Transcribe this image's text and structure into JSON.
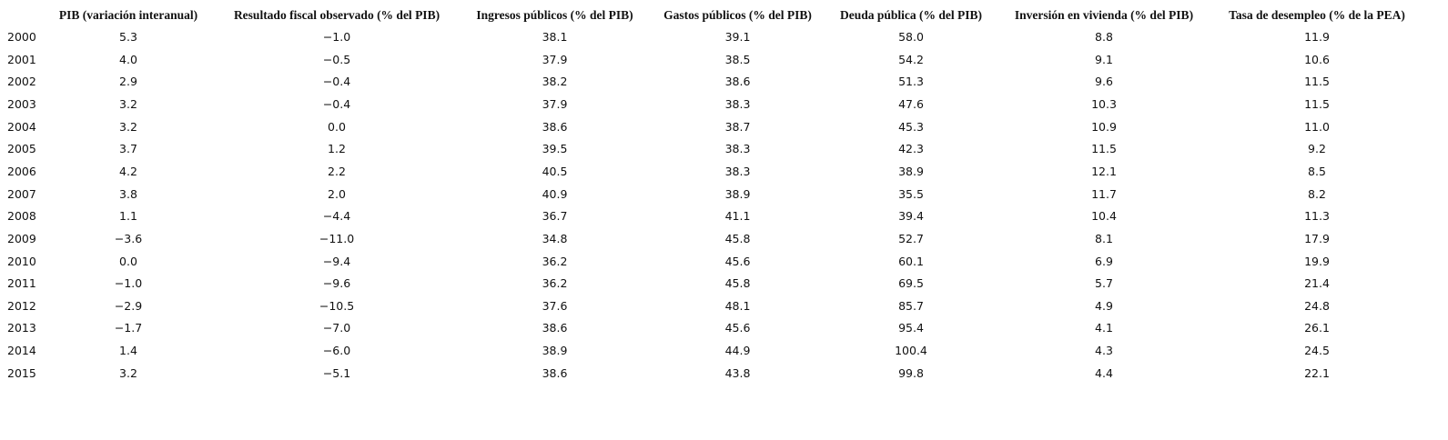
{
  "table": {
    "header": [
      "PIB (variación interanual)",
      "Resultado fiscal observado (% del PIB)",
      "Ingresos públicos (% del PIB)",
      "Gastos públicos (% del PIB)",
      "Deuda pública (% del PIB)",
      "Inversión en vivienda (% del PIB)",
      "Tasa de desempleo (% de la PEA)"
    ],
    "rows": [
      [
        "2000",
        "5.3",
        "−1.0",
        "38.1",
        "39.1",
        "58.0",
        "8.8",
        "11.9"
      ],
      [
        "2001",
        "4.0",
        "−0.5",
        "37.9",
        "38.5",
        "54.2",
        "9.1",
        "10.6"
      ],
      [
        "2002",
        "2.9",
        "−0.4",
        "38.2",
        "38.6",
        "51.3",
        "9.6",
        "11.5"
      ],
      [
        "2003",
        "3.2",
        "−0.4",
        "37.9",
        "38.3",
        "47.6",
        "10.3",
        "11.5"
      ],
      [
        "2004",
        "3.2",
        "0.0",
        "38.6",
        "38.7",
        "45.3",
        "10.9",
        "11.0"
      ],
      [
        "2005",
        "3.7",
        "1.2",
        "39.5",
        "38.3",
        "42.3",
        "11.5",
        "9.2"
      ],
      [
        "2006",
        "4.2",
        "2.2",
        "40.5",
        "38.3",
        "38.9",
        "12.1",
        "8.5"
      ],
      [
        "2007",
        "3.8",
        "2.0",
        "40.9",
        "38.9",
        "35.5",
        "11.7",
        "8.2"
      ],
      [
        "2008",
        "1.1",
        "−4.4",
        "36.7",
        "41.1",
        "39.4",
        "10.4",
        "11.3"
      ],
      [
        "2009",
        "−3.6",
        "−11.0",
        "34.8",
        "45.8",
        "52.7",
        "8.1",
        "17.9"
      ],
      [
        "2010",
        "0.0",
        "−9.4",
        "36.2",
        "45.6",
        "60.1",
        "6.9",
        "19.9"
      ],
      [
        "2011",
        "−1.0",
        "−9.6",
        "36.2",
        "45.8",
        "69.5",
        "5.7",
        "21.4"
      ],
      [
        "2012",
        "−2.9",
        "−10.5",
        "37.6",
        "48.1",
        "85.7",
        "4.9",
        "24.8"
      ],
      [
        "2013",
        "−1.7",
        "−7.0",
        "38.6",
        "45.6",
        "95.4",
        "4.1",
        "26.1"
      ],
      [
        "2014",
        "1.4",
        "−6.0",
        "38.9",
        "44.9",
        "100.4",
        "4.3",
        "24.5"
      ],
      [
        "2015",
        "3.2",
        "−5.1",
        "38.6",
        "43.8",
        "99.8",
        "4.4",
        "22.1"
      ]
    ]
  }
}
